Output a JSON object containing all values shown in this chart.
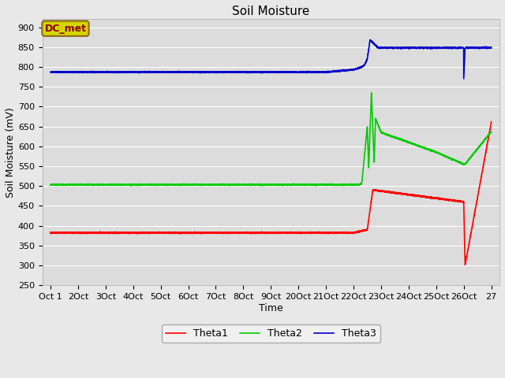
{
  "title": "Soil Moisture",
  "xlabel": "Time",
  "ylabel": "Soil Moisture (mV)",
  "ylim": [
    250,
    920
  ],
  "yticks": [
    250,
    300,
    350,
    400,
    450,
    500,
    550,
    600,
    650,
    700,
    750,
    800,
    850,
    900
  ],
  "fig_bg_color": "#e8e8e8",
  "plot_bg_color": "#dcdcdc",
  "annotation_text": "DC_met",
  "annotation_box_facecolor": "#d4d400",
  "annotation_box_edgecolor": "#8b6914",
  "annotation_text_color": "#8b0000",
  "x_tick_labels": [
    "Oct 1",
    "2Oct",
    "3Oct",
    "4Oct",
    "5Oct",
    "6Oct",
    "7Oct",
    "8Oct",
    "9Oct",
    "20Oct",
    "21Oct",
    "22Oct",
    "23Oct",
    "24Oct",
    "25Oct",
    "26Oct",
    "27"
  ],
  "legend_labels": [
    "Theta1",
    "Theta2",
    "Theta3"
  ],
  "line_colors": [
    "#ff0000",
    "#00cc00",
    "#0000cd"
  ],
  "line_width": 1.2,
  "grid_color": "#ffffff",
  "title_fontsize": 11,
  "axis_fontsize": 9,
  "tick_fontsize": 8
}
